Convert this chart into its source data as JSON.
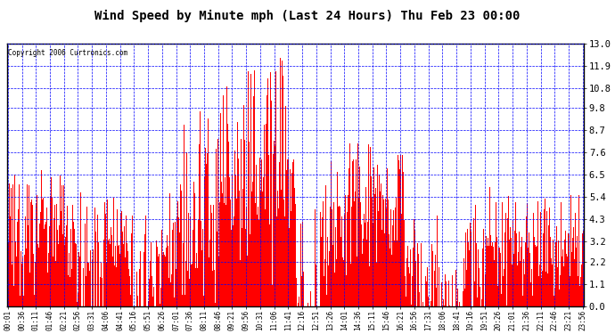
{
  "title": "Wind Speed by Minute mph (Last 24 Hours) Thu Feb 23 00:00",
  "copyright": "Copyright 2006 Curtronics.com",
  "bar_color": "#ff0000",
  "bg_color": "#ffffff",
  "plot_bg_color": "#ffffff",
  "grid_color": "#0000ff",
  "yticks": [
    0.0,
    1.1,
    2.2,
    3.2,
    4.3,
    5.4,
    6.5,
    7.6,
    8.7,
    9.8,
    10.8,
    11.9,
    13.0
  ],
  "ylim": [
    0.0,
    13.0
  ],
  "figsize": [
    6.9,
    3.75
  ],
  "dpi": 100
}
